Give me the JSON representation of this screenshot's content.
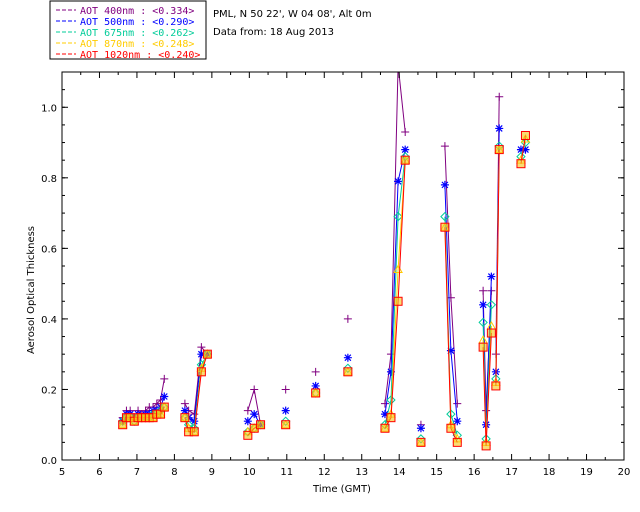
{
  "info": {
    "location": "PML, N 50 22', W 04 08', Alt 0m",
    "date_line": "Data from: 18 Aug 2013"
  },
  "chart_data": {
    "type": "line",
    "xlabel": "Time (GMT)",
    "ylabel": "Aerosol Optical Thickness",
    "xlim": [
      5,
      20
    ],
    "ylim": [
      0,
      1.1
    ],
    "xticks": [
      5,
      6,
      7,
      8,
      9,
      10,
      11,
      12,
      13,
      14,
      15,
      16,
      17,
      18,
      19,
      20
    ],
    "yticks": [
      0.0,
      0.2,
      0.4,
      0.6,
      0.8,
      1.0
    ],
    "ytick_labels": [
      "0.0",
      "0.2",
      "0.4",
      "0.6",
      "0.8",
      "1.0"
    ],
    "legend_position": "top-left, outside plot",
    "series": [
      {
        "name": "AOT  400nm : <0.334>",
        "color": "#800080",
        "marker": "plus",
        "segments": [
          [
            [
              6.62,
              0.12
            ],
            [
              6.72,
              0.14
            ],
            [
              6.82,
              0.14
            ],
            [
              6.93,
              0.12
            ],
            [
              7.03,
              0.14
            ],
            [
              7.13,
              0.13
            ],
            [
              7.23,
              0.14
            ],
            [
              7.33,
              0.15
            ],
            [
              7.43,
              0.15
            ],
            [
              7.53,
              0.16
            ],
            [
              7.63,
              0.17
            ],
            [
              7.73,
              0.23
            ]
          ],
          [
            [
              8.28,
              0.16
            ],
            [
              8.38,
              0.14
            ],
            [
              8.53,
              0.13
            ],
            [
              8.72,
              0.32
            ],
            [
              8.88,
              0.3
            ]
          ],
          [
            [
              9.96,
              0.14
            ],
            [
              10.13,
              0.2
            ],
            [
              10.3,
              0.1
            ]
          ],
          [
            [
              10.97,
              0.2
            ]
          ],
          [
            [
              11.77,
              0.25
            ]
          ],
          [
            [
              12.63,
              0.4
            ]
          ],
          [
            [
              13.62,
              0.16
            ],
            [
              13.78,
              0.3
            ],
            [
              13.97,
              1.12
            ],
            [
              14.16,
              0.93
            ]
          ],
          [
            [
              14.58,
              0.1
            ]
          ],
          [
            [
              15.22,
              0.89
            ],
            [
              15.38,
              0.46
            ],
            [
              15.55,
              0.16
            ]
          ],
          [
            [
              16.24,
              0.48
            ],
            [
              16.32,
              0.14
            ],
            [
              16.46,
              0.48
            ]
          ],
          [
            [
              16.58,
              0.3
            ],
            [
              16.67,
              1.03
            ]
          ],
          [
            [
              17.25,
              0.88
            ],
            [
              17.37,
              0.88
            ]
          ]
        ]
      },
      {
        "name": "AOT  500nm : <0.290>",
        "color": "#0000ff",
        "marker": "star",
        "segments": [
          [
            [
              6.62,
              0.11
            ],
            [
              6.72,
              0.13
            ],
            [
              6.82,
              0.13
            ],
            [
              6.93,
              0.12
            ],
            [
              7.03,
              0.13
            ],
            [
              7.13,
              0.12
            ],
            [
              7.23,
              0.13
            ],
            [
              7.33,
              0.13
            ],
            [
              7.43,
              0.14
            ],
            [
              7.53,
              0.14
            ],
            [
              7.63,
              0.15
            ],
            [
              7.73,
              0.18
            ]
          ],
          [
            [
              8.28,
              0.14
            ],
            [
              8.38,
              0.12
            ],
            [
              8.53,
              0.11
            ],
            [
              8.72,
              0.3
            ],
            [
              8.88,
              0.3
            ]
          ],
          [
            [
              9.96,
              0.11
            ],
            [
              10.13,
              0.13
            ],
            [
              10.3,
              0.1
            ]
          ],
          [
            [
              10.97,
              0.14
            ]
          ],
          [
            [
              11.77,
              0.21
            ]
          ],
          [
            [
              12.63,
              0.29
            ]
          ],
          [
            [
              13.62,
              0.13
            ],
            [
              13.78,
              0.25
            ],
            [
              13.97,
              0.79
            ],
            [
              14.16,
              0.88
            ]
          ],
          [
            [
              14.58,
              0.09
            ]
          ],
          [
            [
              15.22,
              0.78
            ],
            [
              15.38,
              0.31
            ],
            [
              15.55,
              0.11
            ]
          ],
          [
            [
              16.24,
              0.44
            ],
            [
              16.32,
              0.1
            ],
            [
              16.46,
              0.52
            ]
          ],
          [
            [
              16.58,
              0.25
            ],
            [
              16.67,
              0.94
            ]
          ],
          [
            [
              17.25,
              0.88
            ],
            [
              17.37,
              0.88
            ]
          ]
        ]
      },
      {
        "name": "AOT  675nm : <0.262>",
        "color": "#00cc99",
        "marker": "diamond",
        "segments": [
          [
            [
              6.62,
              0.11
            ],
            [
              6.72,
              0.12
            ],
            [
              6.82,
              0.12
            ],
            [
              6.93,
              0.11
            ],
            [
              7.03,
              0.12
            ],
            [
              7.13,
              0.12
            ],
            [
              7.23,
              0.12
            ],
            [
              7.33,
              0.12
            ],
            [
              7.43,
              0.13
            ],
            [
              7.53,
              0.13
            ],
            [
              7.63,
              0.14
            ],
            [
              7.73,
              0.15
            ]
          ],
          [
            [
              8.28,
              0.12
            ],
            [
              8.38,
              0.1
            ],
            [
              8.53,
              0.09
            ],
            [
              8.72,
              0.27
            ],
            [
              8.88,
              0.3
            ]
          ],
          [
            [
              9.96,
              0.08
            ],
            [
              10.13,
              0.09
            ],
            [
              10.3,
              0.1
            ]
          ],
          [
            [
              10.97,
              0.11
            ]
          ],
          [
            [
              11.77,
              0.19
            ]
          ],
          [
            [
              12.63,
              0.26
            ]
          ],
          [
            [
              13.62,
              0.1
            ],
            [
              13.78,
              0.17
            ],
            [
              13.97,
              0.69
            ],
            [
              14.16,
              0.86
            ]
          ],
          [
            [
              14.58,
              0.06
            ]
          ],
          [
            [
              15.22,
              0.69
            ],
            [
              15.38,
              0.13
            ],
            [
              15.55,
              0.07
            ]
          ],
          [
            [
              16.24,
              0.39
            ],
            [
              16.32,
              0.06
            ],
            [
              16.46,
              0.44
            ]
          ],
          [
            [
              16.58,
              0.23
            ],
            [
              16.67,
              0.89
            ]
          ],
          [
            [
              17.25,
              0.86
            ],
            [
              17.37,
              0.9
            ]
          ]
        ]
      },
      {
        "name": "AOT  870nm : <0.248>",
        "color": "#ffcc00",
        "marker": "triangle",
        "segments": [
          [
            [
              6.62,
              0.1
            ],
            [
              6.72,
              0.12
            ],
            [
              6.82,
              0.12
            ],
            [
              6.93,
              0.11
            ],
            [
              7.03,
              0.12
            ],
            [
              7.13,
              0.12
            ],
            [
              7.23,
              0.12
            ],
            [
              7.33,
              0.12
            ],
            [
              7.43,
              0.12
            ],
            [
              7.53,
              0.13
            ],
            [
              7.63,
              0.13
            ],
            [
              7.73,
              0.15
            ]
          ],
          [
            [
              8.28,
              0.12
            ],
            [
              8.38,
              0.09
            ],
            [
              8.53,
              0.08
            ],
            [
              8.72,
              0.26
            ],
            [
              8.88,
              0.3
            ]
          ],
          [
            [
              9.96,
              0.08
            ],
            [
              10.13,
              0.09
            ],
            [
              10.3,
              0.1
            ]
          ],
          [
            [
              10.97,
              0.1
            ]
          ],
          [
            [
              11.77,
              0.19
            ]
          ],
          [
            [
              12.63,
              0.25
            ]
          ],
          [
            [
              13.62,
              0.09
            ],
            [
              13.78,
              0.13
            ],
            [
              13.97,
              0.54
            ],
            [
              14.16,
              0.85
            ]
          ],
          [
            [
              14.58,
              0.05
            ]
          ],
          [
            [
              15.22,
              0.66
            ],
            [
              15.38,
              0.1
            ],
            [
              15.55,
              0.06
            ]
          ],
          [
            [
              16.24,
              0.34
            ],
            [
              16.32,
              0.05
            ],
            [
              16.46,
              0.38
            ]
          ],
          [
            [
              16.58,
              0.22
            ],
            [
              16.67,
              0.88
            ]
          ],
          [
            [
              17.25,
              0.85
            ],
            [
              17.37,
              0.91
            ]
          ]
        ]
      },
      {
        "name": "AOT 1020nm : <0.240>",
        "color": "#ff0000",
        "marker": "square",
        "segments": [
          [
            [
              6.62,
              0.1
            ],
            [
              6.72,
              0.12
            ],
            [
              6.82,
              0.12
            ],
            [
              6.93,
              0.11
            ],
            [
              7.03,
              0.12
            ],
            [
              7.13,
              0.12
            ],
            [
              7.23,
              0.12
            ],
            [
              7.33,
              0.12
            ],
            [
              7.43,
              0.12
            ],
            [
              7.53,
              0.13
            ],
            [
              7.63,
              0.13
            ],
            [
              7.73,
              0.15
            ]
          ],
          [
            [
              8.28,
              0.12
            ],
            [
              8.38,
              0.08
            ],
            [
              8.53,
              0.08
            ],
            [
              8.72,
              0.25
            ],
            [
              8.88,
              0.3
            ]
          ],
          [
            [
              9.96,
              0.07
            ],
            [
              10.13,
              0.09
            ],
            [
              10.3,
              0.1
            ]
          ],
          [
            [
              10.97,
              0.1
            ]
          ],
          [
            [
              11.77,
              0.19
            ]
          ],
          [
            [
              12.63,
              0.25
            ]
          ],
          [
            [
              13.62,
              0.09
            ],
            [
              13.78,
              0.12
            ],
            [
              13.97,
              0.45
            ],
            [
              14.16,
              0.85
            ]
          ],
          [
            [
              14.58,
              0.05
            ]
          ],
          [
            [
              15.22,
              0.66
            ],
            [
              15.38,
              0.09
            ],
            [
              15.55,
              0.05
            ]
          ],
          [
            [
              16.24,
              0.32
            ],
            [
              16.32,
              0.04
            ],
            [
              16.46,
              0.36
            ]
          ],
          [
            [
              16.58,
              0.21
            ],
            [
              16.67,
              0.88
            ]
          ],
          [
            [
              17.25,
              0.84
            ],
            [
              17.37,
              0.92
            ]
          ]
        ]
      }
    ]
  }
}
